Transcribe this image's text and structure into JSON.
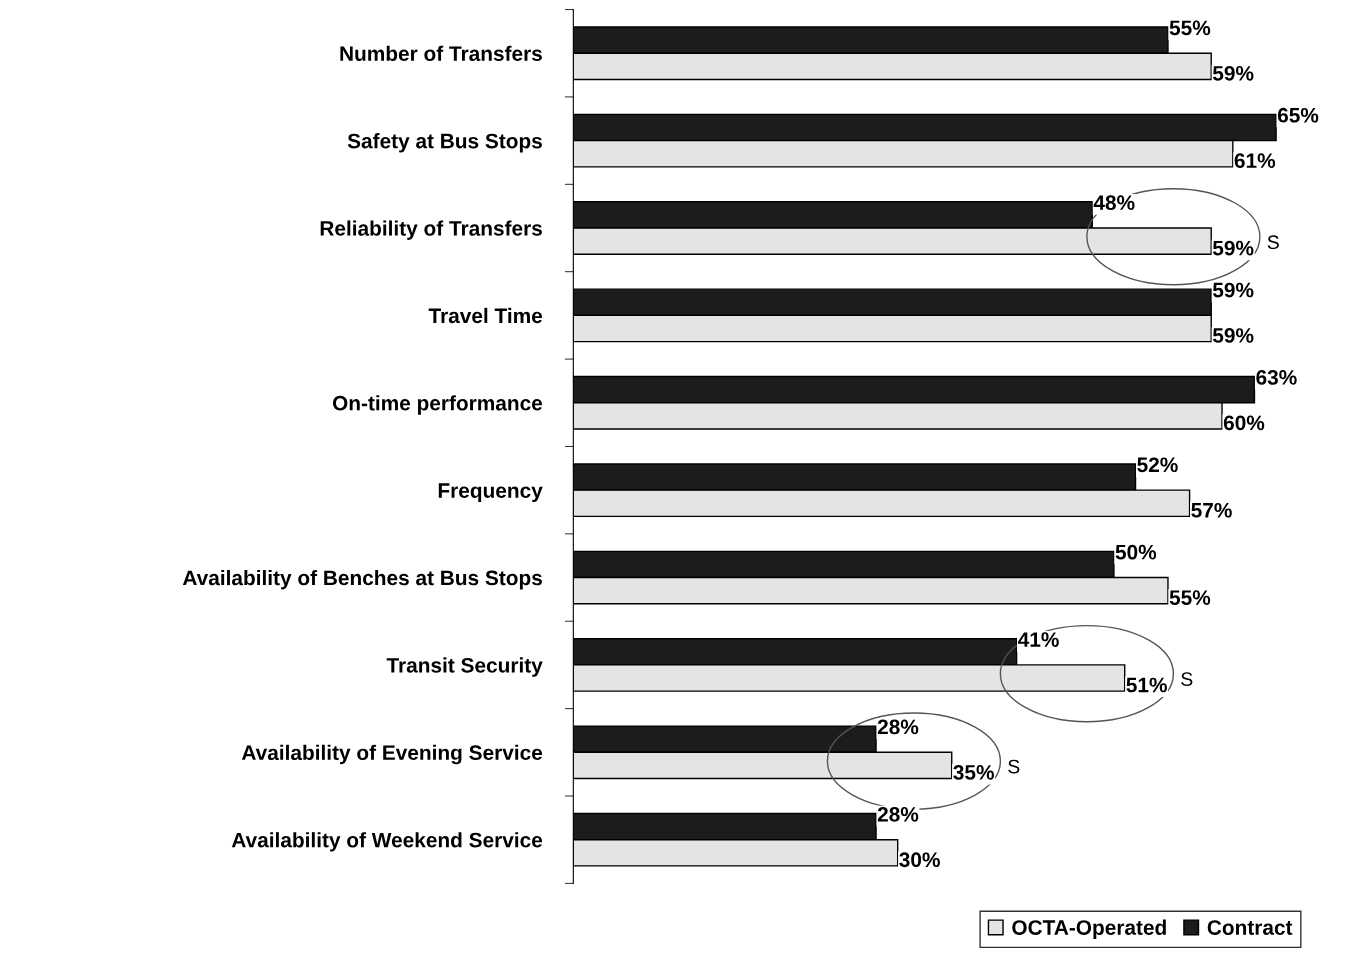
{
  "chart_data": {
    "type": "bar",
    "orientation": "horizontal",
    "categories": [
      "Number of Transfers",
      "Safety at Bus Stops",
      "Reliability of Transfers",
      "Travel Time",
      "On-time performance",
      "Frequency",
      "Availability of Benches at Bus Stops",
      "Transit Security",
      "Availability of Evening Service",
      "Availability of Weekend Service"
    ],
    "series": [
      {
        "name": "Contract",
        "color": "#1c1c1c",
        "values": [
          55,
          65,
          48,
          59,
          63,
          52,
          50,
          41,
          28,
          28
        ],
        "value_labels": [
          "55%",
          "65%",
          "48%",
          "59%",
          "63%",
          "52%",
          "50%",
          "41%",
          "28%",
          "28%"
        ]
      },
      {
        "name": "OCTA-Operated",
        "color": "#e4e4e4",
        "values": [
          59,
          61,
          59,
          59,
          60,
          57,
          55,
          51,
          35,
          30
        ],
        "value_labels": [
          "59%",
          "61%",
          "59%",
          "59%",
          "60%",
          "57%",
          "55%",
          "51%",
          "35%",
          "30%"
        ]
      }
    ],
    "annotations": [
      {
        "text": "S",
        "x": 59,
        "y": "Reliability of Transfers"
      },
      {
        "text": "S",
        "x": 51,
        "y": "Transit Security"
      },
      {
        "text": "S",
        "x": 35,
        "y": "Availability of Evening Service"
      }
    ],
    "tick_labels": "y",
    "legend": "bottom right",
    "grid": false
  }
}
